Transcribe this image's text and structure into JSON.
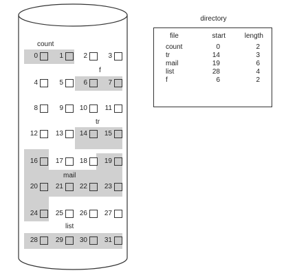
{
  "directory": {
    "title": "directory",
    "headers": {
      "file": "file",
      "start": "start",
      "length": "length"
    },
    "rows": [
      {
        "file": "count",
        "start": "0",
        "length": "2"
      },
      {
        "file": "tr",
        "start": "14",
        "length": "3"
      },
      {
        "file": "mail",
        "start": "19",
        "length": "6"
      },
      {
        "file": "list",
        "start": "28",
        "length": "4"
      },
      {
        "file": "f",
        "start": "6",
        "length": "2"
      }
    ]
  },
  "disk": {
    "file_labels": {
      "count": "count",
      "f": "f",
      "tr": "tr",
      "mail": "mail",
      "list": "list"
    },
    "blocks": [
      "0",
      "1",
      "2",
      "3",
      "4",
      "5",
      "6",
      "7",
      "8",
      "9",
      "10",
      "11",
      "12",
      "13",
      "14",
      "15",
      "16",
      "17",
      "18",
      "19",
      "20",
      "21",
      "22",
      "23",
      "24",
      "25",
      "26",
      "27",
      "28",
      "29",
      "30",
      "31"
    ],
    "allocated_blocks": [
      0,
      1,
      6,
      7,
      14,
      15,
      16,
      19,
      20,
      21,
      22,
      23,
      24,
      28,
      29,
      30,
      31
    ]
  },
  "colors": {
    "allocated_fill": "#c9c9c9",
    "outline": "#333333"
  }
}
